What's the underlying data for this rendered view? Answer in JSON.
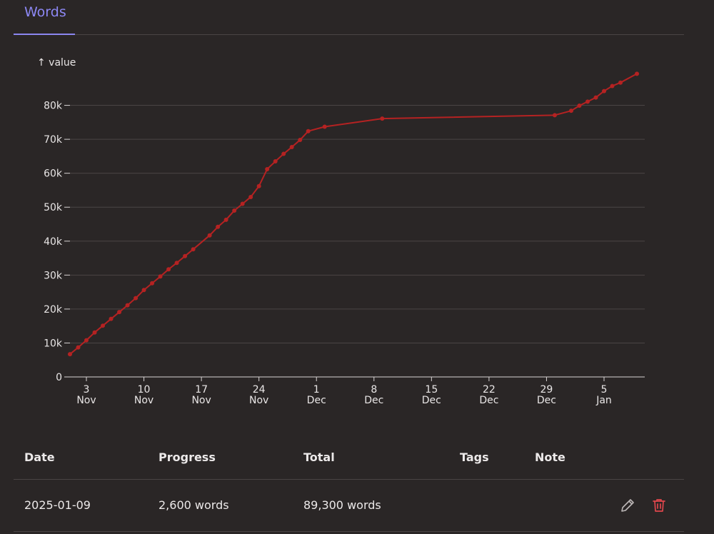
{
  "tab": {
    "label": "Words"
  },
  "chart_data": {
    "type": "line",
    "title": "",
    "xlabel": "",
    "ylabel": "↑ value",
    "ylim": [
      0,
      90000
    ],
    "xlim": [
      "2024-11-01",
      "2025-01-10"
    ],
    "y_ticks": [
      {
        "value": 0,
        "label": "0"
      },
      {
        "value": 10000,
        "label": "10k"
      },
      {
        "value": 20000,
        "label": "20k"
      },
      {
        "value": 30000,
        "label": "30k"
      },
      {
        "value": 40000,
        "label": "40k"
      },
      {
        "value": 50000,
        "label": "50k"
      },
      {
        "value": 60000,
        "label": "60k"
      },
      {
        "value": 70000,
        "label": "70k"
      },
      {
        "value": 80000,
        "label": "80k"
      }
    ],
    "x_ticks": [
      {
        "date": "2024-11-03",
        "day": "3",
        "month": "Nov"
      },
      {
        "date": "2024-11-10",
        "day": "10",
        "month": "Nov"
      },
      {
        "date": "2024-11-17",
        "day": "17",
        "month": "Nov"
      },
      {
        "date": "2024-11-24",
        "day": "24",
        "month": "Nov"
      },
      {
        "date": "2024-12-01",
        "day": "1",
        "month": "Dec"
      },
      {
        "date": "2024-12-08",
        "day": "8",
        "month": "Dec"
      },
      {
        "date": "2024-12-15",
        "day": "15",
        "month": "Dec"
      },
      {
        "date": "2024-12-22",
        "day": "22",
        "month": "Dec"
      },
      {
        "date": "2024-12-29",
        "day": "29",
        "month": "Dec"
      },
      {
        "date": "2025-01-05",
        "day": "5",
        "month": "Jan"
      }
    ],
    "grid": true,
    "series": [
      {
        "color": "#b52222",
        "points": [
          {
            "x": "2024-11-01",
            "y": 6700
          },
          {
            "x": "2024-11-02",
            "y": 8700
          },
          {
            "x": "2024-11-03",
            "y": 10800
          },
          {
            "x": "2024-11-04",
            "y": 13100
          },
          {
            "x": "2024-11-05",
            "y": 15100
          },
          {
            "x": "2024-11-06",
            "y": 17100
          },
          {
            "x": "2024-11-07",
            "y": 19100
          },
          {
            "x": "2024-11-08",
            "y": 21100
          },
          {
            "x": "2024-11-09",
            "y": 23200
          },
          {
            "x": "2024-11-10",
            "y": 25600
          },
          {
            "x": "2024-11-11",
            "y": 27600
          },
          {
            "x": "2024-11-12",
            "y": 29600
          },
          {
            "x": "2024-11-13",
            "y": 31700
          },
          {
            "x": "2024-11-14",
            "y": 33600
          },
          {
            "x": "2024-11-15",
            "y": 35600
          },
          {
            "x": "2024-11-16",
            "y": 37600
          },
          {
            "x": "2024-11-18",
            "y": 41700
          },
          {
            "x": "2024-11-19",
            "y": 44200
          },
          {
            "x": "2024-11-20",
            "y": 46300
          },
          {
            "x": "2024-11-21",
            "y": 49000
          },
          {
            "x": "2024-11-22",
            "y": 51000
          },
          {
            "x": "2024-11-23",
            "y": 53000
          },
          {
            "x": "2024-11-24",
            "y": 56200
          },
          {
            "x": "2024-11-25",
            "y": 61200
          },
          {
            "x": "2024-11-26",
            "y": 63500
          },
          {
            "x": "2024-11-27",
            "y": 65700
          },
          {
            "x": "2024-11-28",
            "y": 67700
          },
          {
            "x": "2024-11-29",
            "y": 69800
          },
          {
            "x": "2024-11-30",
            "y": 72400
          },
          {
            "x": "2024-12-02",
            "y": 73700
          },
          {
            "x": "2024-12-09",
            "y": 76100
          },
          {
            "x": "2024-12-30",
            "y": 77100
          },
          {
            "x": "2025-01-01",
            "y": 78400
          },
          {
            "x": "2025-01-02",
            "y": 79900
          },
          {
            "x": "2025-01-03",
            "y": 81100
          },
          {
            "x": "2025-01-04",
            "y": 82300
          },
          {
            "x": "2025-01-05",
            "y": 84200
          },
          {
            "x": "2025-01-06",
            "y": 85700
          },
          {
            "x": "2025-01-07",
            "y": 86700
          },
          {
            "x": "2025-01-09",
            "y": 89300
          }
        ]
      }
    ]
  },
  "table": {
    "headers": {
      "date": "Date",
      "progress": "Progress",
      "total": "Total",
      "tags": "Tags",
      "note": "Note"
    },
    "rows": [
      {
        "date": "2025-01-09",
        "progress": "2,600 words",
        "total": "89,300 words",
        "tags": "",
        "note": ""
      }
    ]
  },
  "icons": {
    "edit": "pencil-icon",
    "delete": "trash-icon",
    "delete_color": "#e0464c"
  }
}
